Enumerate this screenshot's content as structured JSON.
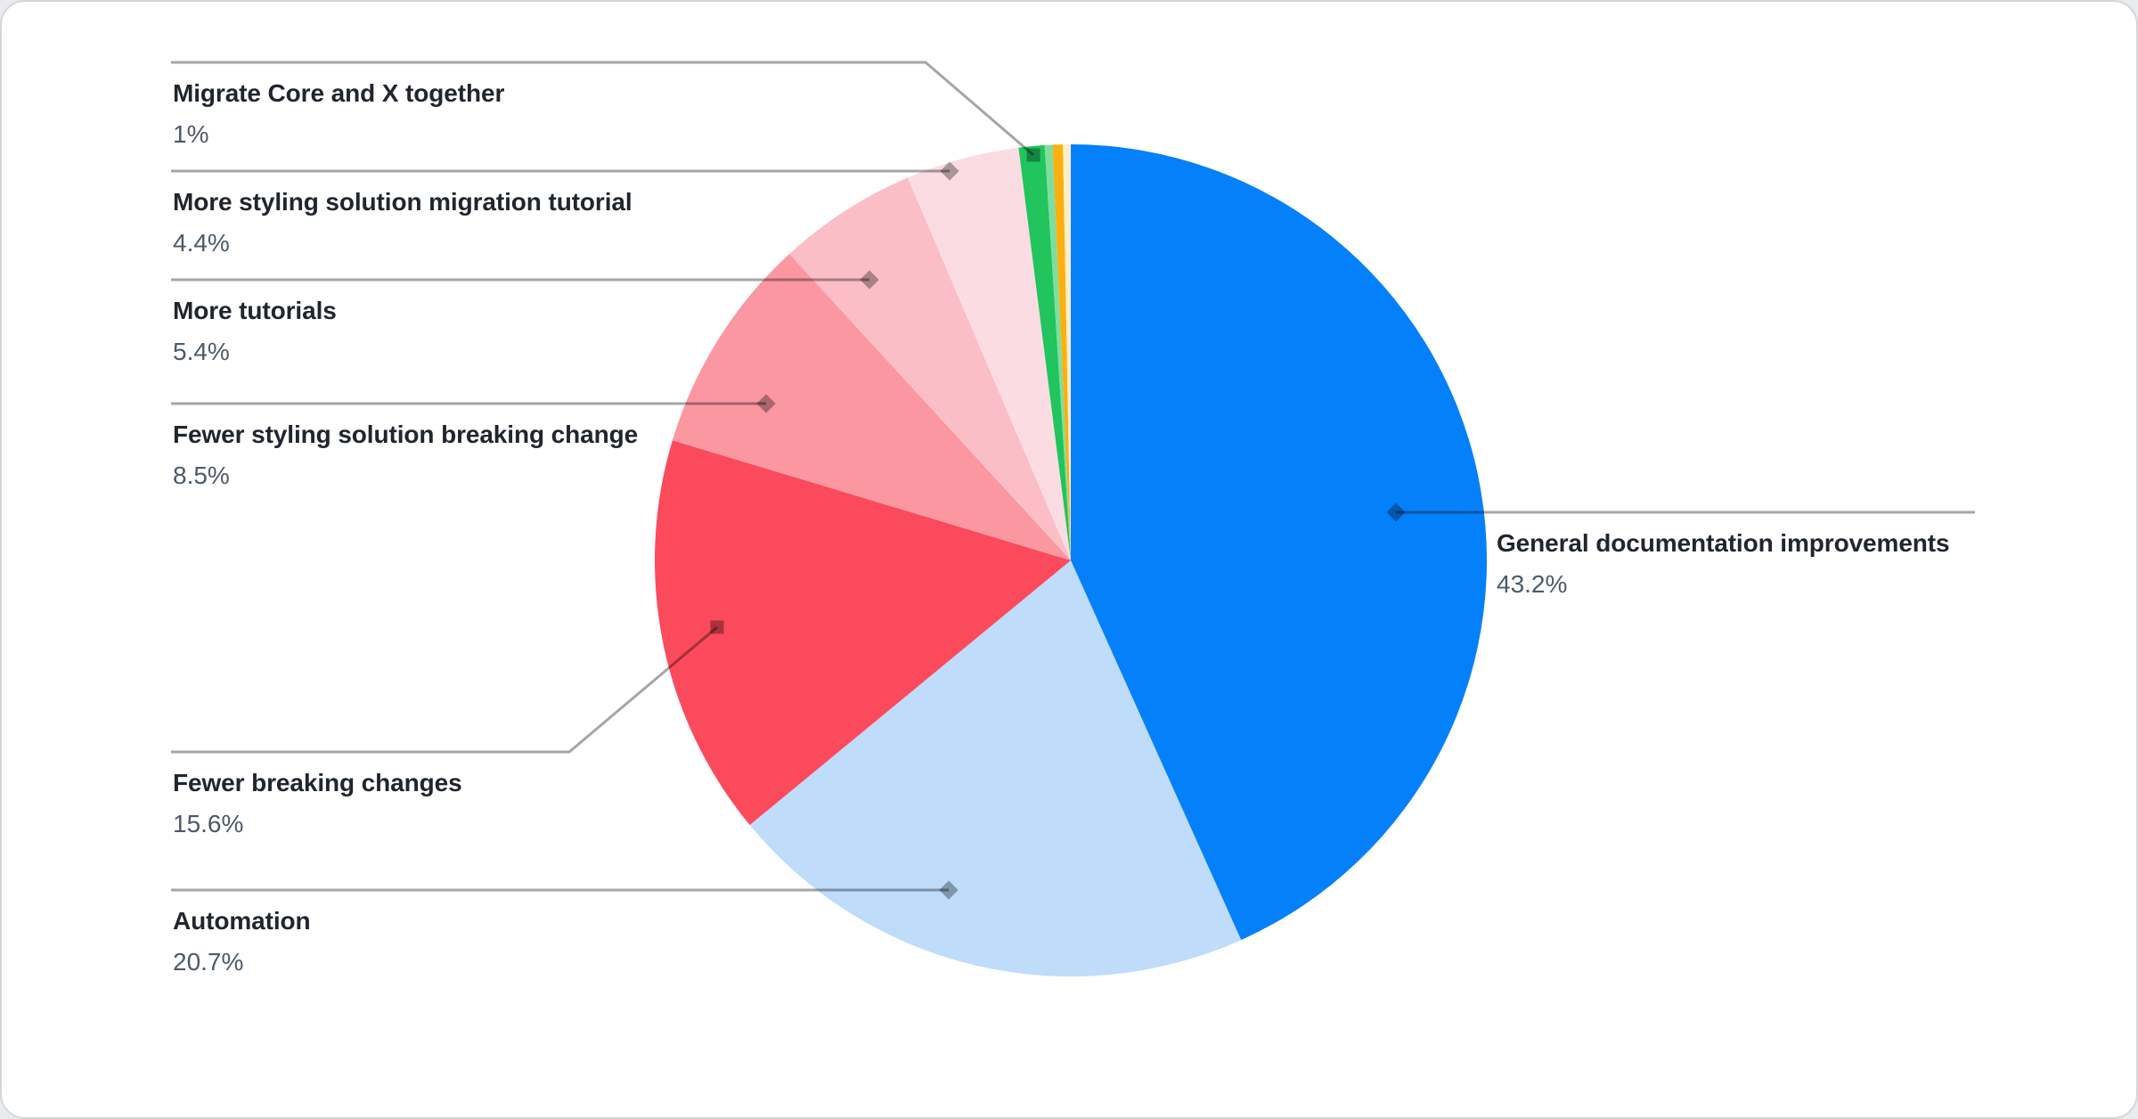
{
  "chart_data": {
    "type": "pie",
    "title": "",
    "legend_position": "callouts-with-leader-lines",
    "start_angle": "top",
    "direction": "clockwise",
    "series": [
      {
        "label": "General documentation improvements",
        "value": 43.2,
        "display": "43.2%",
        "color": "#0580FB"
      },
      {
        "label": "Automation",
        "value": 20.7,
        "display": "20.7%",
        "color": "#BFDCFB"
      },
      {
        "label": "Fewer breaking changes",
        "value": 15.6,
        "display": "15.6%",
        "color": "#FB4A5C"
      },
      {
        "label": "Fewer styling solution breaking change",
        "value": 8.5,
        "display": "8.5%",
        "color": "#FB97A1"
      },
      {
        "label": "More tutorials",
        "value": 5.4,
        "display": "5.4%",
        "color": "#FBBEC6"
      },
      {
        "label": "More styling solution migration tutorial",
        "value": 4.4,
        "display": "4.4%",
        "color": "#FBDCE3"
      },
      {
        "label": "Migrate Core and X together",
        "value": 1,
        "display": "1%",
        "color": "#21C45D"
      },
      {
        "label": "",
        "value": 0.3,
        "display": "",
        "color": "#7EDE9E",
        "unlabeled": true
      },
      {
        "label": "",
        "value": 0.4,
        "display": "",
        "color": "#FBB011",
        "unlabeled": true
      },
      {
        "label": "",
        "value": 0.3,
        "display": "",
        "color": "#FCEEC6",
        "unlabeled": true
      }
    ]
  }
}
